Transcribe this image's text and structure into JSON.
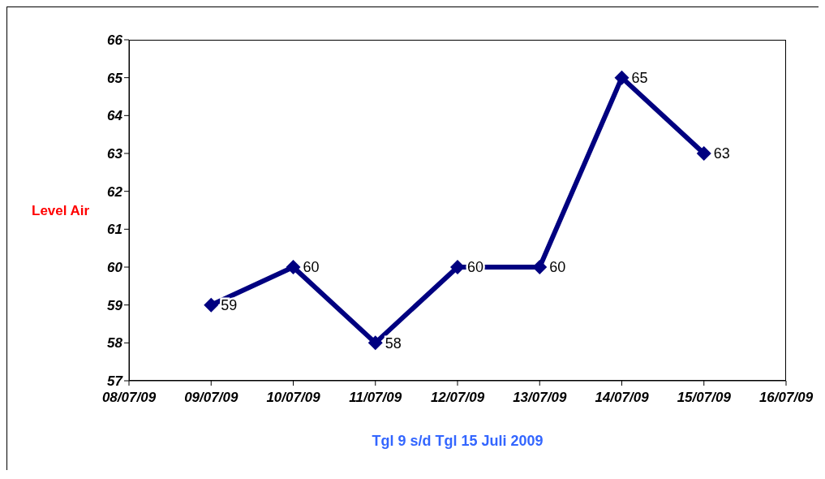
{
  "chart_data": {
    "type": "line",
    "xlabel": "Tgl 9 s/d Tgl 15 Juli 2009",
    "ylabel": "Level Air",
    "x": [
      "2009-07-09",
      "2009-07-10",
      "2009-07-11",
      "2009-07-12",
      "2009-07-13",
      "2009-07-14",
      "2009-07-15"
    ],
    "series": [
      {
        "color": "#000080",
        "values": [
          59,
          60,
          58,
          60,
          60,
          65,
          63
        ]
      }
    ],
    "xlim": [
      "2009-07-08",
      "2009-07-16"
    ],
    "xticks": [
      {
        "value": "2009-07-08",
        "label": "08/07/09"
      },
      {
        "value": "2009-07-09",
        "label": "09/07/09"
      },
      {
        "value": "2009-07-10",
        "label": "10/07/09"
      },
      {
        "value": "2009-07-11",
        "label": "11/07/09"
      },
      {
        "value": "2009-07-12",
        "label": "12/07/09"
      },
      {
        "value": "2009-07-13",
        "label": "13/07/09"
      },
      {
        "value": "2009-07-14",
        "label": "14/07/09"
      },
      {
        "value": "2009-07-15",
        "label": "15/07/09"
      },
      {
        "value": "2009-07-16",
        "label": "16/07/09"
      }
    ],
    "ylim": [
      57,
      66
    ],
    "yticks": [
      57,
      58,
      59,
      60,
      61,
      62,
      63,
      64,
      65,
      66
    ],
    "grid": false,
    "legend": false,
    "marker": "diamond",
    "line_style": "solid",
    "data_labels": true
  }
}
